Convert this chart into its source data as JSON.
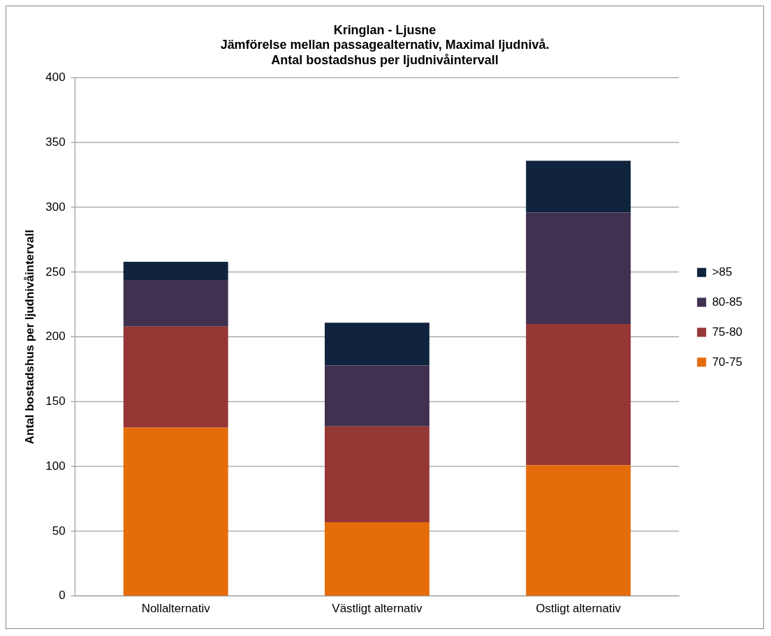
{
  "chart_data": {
    "type": "bar",
    "title": [
      "Kringlan - Ljusne",
      "Jämförelse mellan passagealternativ, Maximal ljudnivå.",
      "Antal bostadshus per ljudnivåintervall"
    ],
    "ylabel": "Antal bostadshus per ljudnivåintervall",
    "categories": [
      "Nollalternativ",
      "Västligt alternativ",
      "Ostligt alternativ"
    ],
    "stacked": true,
    "series": [
      {
        "name": "70-75",
        "color": "#e46c0a",
        "values": [
          130,
          57,
          101
        ]
      },
      {
        "name": "75-80",
        "color": "#953735",
        "values": [
          78,
          74,
          109
        ]
      },
      {
        "name": "80-85",
        "color": "#403151",
        "values": [
          36,
          47,
          86
        ]
      },
      {
        "name": ">85",
        "color": "#10243e",
        "values": [
          14,
          33,
          40
        ]
      }
    ],
    "ylim": [
      0,
      400
    ],
    "yticks": [
      0,
      50,
      100,
      150,
      200,
      250,
      300,
      350,
      400
    ],
    "grid": "y",
    "legend": "right"
  }
}
